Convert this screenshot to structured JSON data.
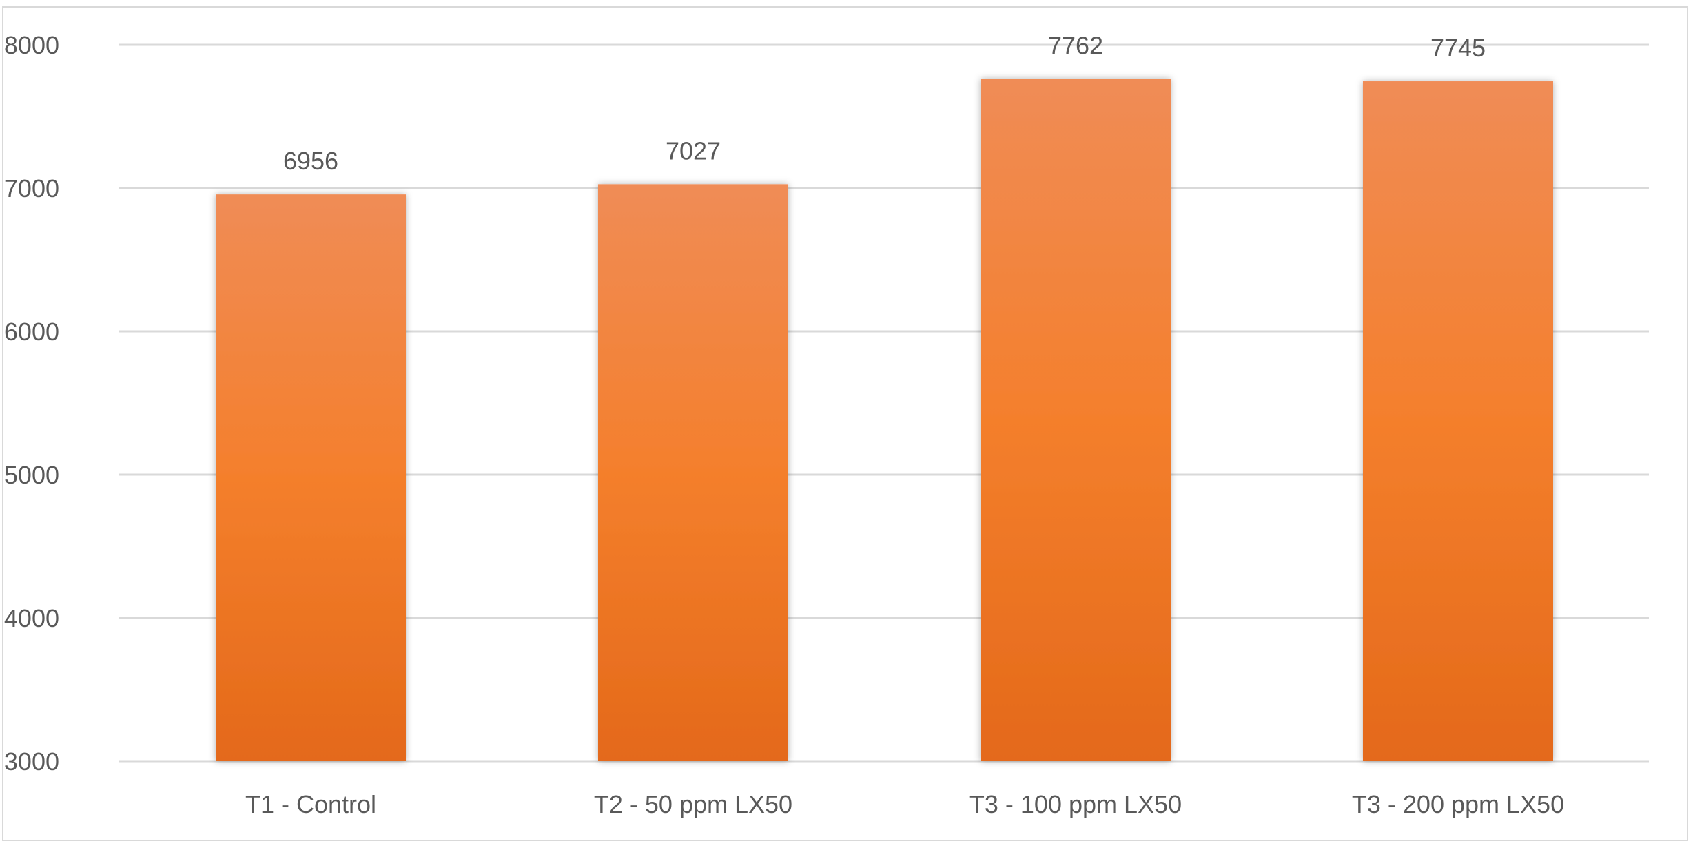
{
  "chart_data": {
    "type": "bar",
    "title": "",
    "xlabel": "",
    "ylabel": "",
    "categories": [
      "T1 - Control",
      "T2 - 50 ppm LX50",
      "T3 - 100 ppm LX50",
      "T3 - 200 ppm LX50"
    ],
    "values": [
      6956,
      7027,
      7762,
      7745
    ],
    "data_labels": [
      "6956",
      "7027",
      "7762",
      "7745"
    ],
    "ylim": [
      3000,
      8000
    ],
    "yticks": [
      3000,
      4000,
      5000,
      6000,
      7000,
      8000
    ],
    "ytick_labels": [
      "3000",
      "4000",
      "5000",
      "6000",
      "7000",
      "8000"
    ],
    "grid": true,
    "legend": "none",
    "colors": {
      "bar_top": "#f08c56",
      "bar_mid": "#f47f2c",
      "bar_bottom": "#e4691a",
      "grid": "#d9d9d9",
      "text": "#595959"
    }
  }
}
